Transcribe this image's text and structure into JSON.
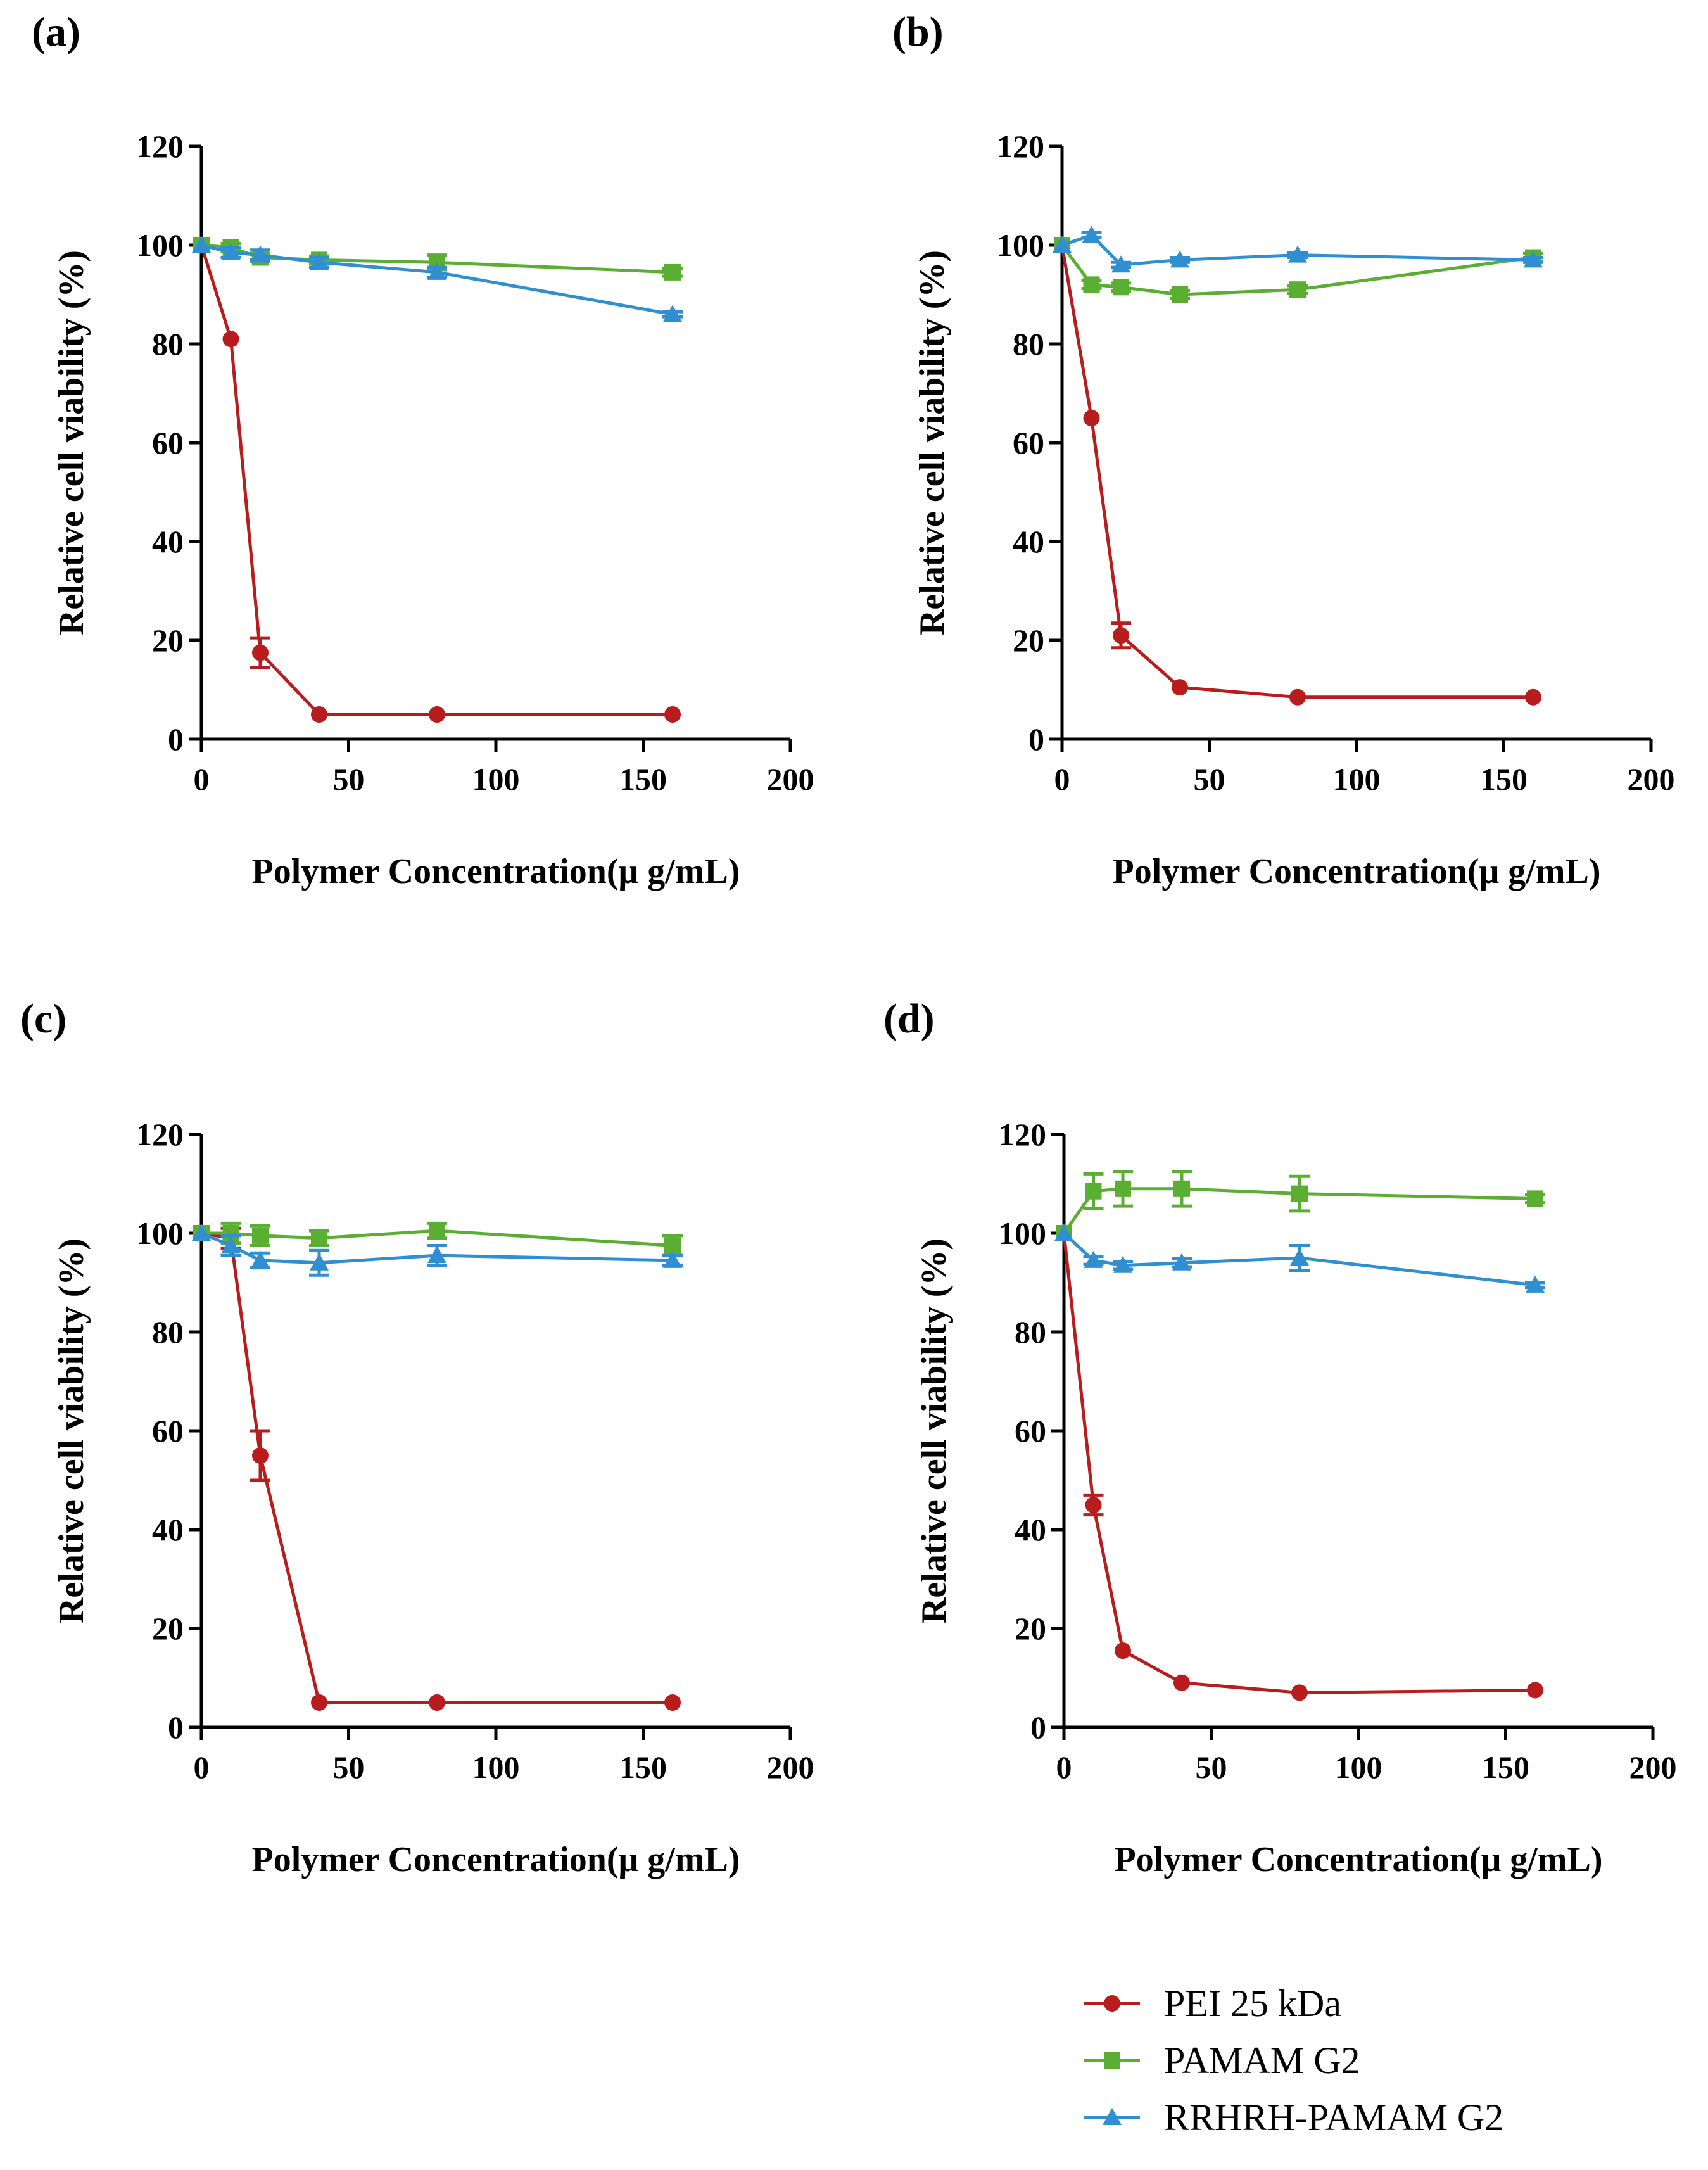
{
  "figure": {
    "series_styles": [
      {
        "name": "PEI 25 kDa",
        "color": "#B81C1C",
        "marker": "circle"
      },
      {
        "name": "PAMAM G2",
        "color": "#5AAF32",
        "marker": "square"
      },
      {
        "name": "RRHRH-PAMAM G2",
        "color": "#2F8FD0",
        "marker": "triangle"
      }
    ]
  },
  "legend": {
    "items": [
      "PEI 25 kDa",
      "PAMAM G2",
      "RRHRH-PAMAM G2"
    ]
  },
  "chart_data": [
    {
      "panel": "(a)",
      "type": "line",
      "xlabel": "Polymer Concentration(μ g/mL)",
      "ylabel": "Relative cell viability (%)",
      "xlim": [
        0,
        200
      ],
      "ylim": [
        0,
        120
      ],
      "xticks": [
        0,
        50,
        100,
        150,
        200
      ],
      "yticks": [
        0,
        20,
        40,
        60,
        80,
        100,
        120
      ],
      "x": [
        0,
        10,
        20,
        40,
        80,
        160
      ],
      "series": [
        {
          "name": "PEI 25 kDa",
          "values": [
            100,
            81,
            17.5,
            5,
            5,
            5
          ],
          "errors": [
            0,
            0,
            3,
            0,
            0,
            0
          ]
        },
        {
          "name": "PAMAM G2",
          "values": [
            100,
            99.5,
            97.5,
            97,
            96.5,
            94.5
          ],
          "errors": [
            0,
            0.8,
            0.8,
            0.8,
            1.5,
            0.8
          ]
        },
        {
          "name": "RRHRH-PAMAM G2",
          "values": [
            100,
            98.5,
            98,
            96.5,
            94.5,
            86
          ],
          "errors": [
            0,
            1,
            1,
            1,
            1,
            0.5
          ]
        }
      ]
    },
    {
      "panel": "(b)",
      "type": "line",
      "xlabel": "Polymer Concentration(μ g/mL)",
      "ylabel": "Relative cell viability (%)",
      "xlim": [
        0,
        200
      ],
      "ylim": [
        0,
        120
      ],
      "xticks": [
        0,
        50,
        100,
        150,
        200
      ],
      "yticks": [
        0,
        20,
        40,
        60,
        80,
        100,
        120
      ],
      "x": [
        0,
        10,
        20,
        40,
        80,
        160
      ],
      "series": [
        {
          "name": "PEI 25 kDa",
          "values": [
            100,
            65,
            21,
            10.5,
            8.5,
            8.5
          ],
          "errors": [
            0,
            0,
            2.5,
            0,
            0,
            0
          ]
        },
        {
          "name": "PAMAM G2",
          "values": [
            100,
            92,
            91.5,
            90,
            91,
            97.5
          ],
          "errors": [
            0,
            0.8,
            0.8,
            0.8,
            0.8,
            0.8
          ]
        },
        {
          "name": "RRHRH-PAMAM G2",
          "values": [
            100,
            102,
            96,
            97,
            98,
            97
          ],
          "errors": [
            0,
            0.5,
            0.5,
            0.5,
            0.5,
            0.5
          ]
        }
      ]
    },
    {
      "panel": "(c)",
      "type": "line",
      "xlabel": "Polymer Concentration(μ g/mL)",
      "ylabel": "Relative cell viability (%)",
      "xlim": [
        0,
        200
      ],
      "ylim": [
        0,
        120
      ],
      "xticks": [
        0,
        50,
        100,
        150,
        200
      ],
      "yticks": [
        0,
        20,
        40,
        60,
        80,
        100,
        120
      ],
      "x": [
        0,
        10,
        20,
        40,
        80,
        160
      ],
      "series": [
        {
          "name": "PEI 25 kDa",
          "values": [
            100,
            99,
            55,
            5,
            5,
            5
          ],
          "errors": [
            0,
            2,
            5,
            0,
            0,
            0
          ]
        },
        {
          "name": "PAMAM G2",
          "values": [
            100,
            100,
            99.5,
            99,
            100.5,
            97.5
          ],
          "errors": [
            0,
            2,
            2,
            1.5,
            1.5,
            2
          ]
        },
        {
          "name": "RRHRH-PAMAM G2",
          "values": [
            100,
            97.5,
            94.5,
            94,
            95.5,
            94.5
          ],
          "errors": [
            0,
            2,
            1.5,
            2.5,
            2,
            1
          ]
        }
      ]
    },
    {
      "panel": "(d)",
      "type": "line",
      "xlabel": "Polymer Concentration(μ g/mL)",
      "ylabel": "Relative cell viability (%)",
      "xlim": [
        0,
        200
      ],
      "ylim": [
        0,
        120
      ],
      "xticks": [
        0,
        50,
        100,
        150,
        200
      ],
      "yticks": [
        0,
        20,
        40,
        60,
        80,
        100,
        120
      ],
      "x": [
        0,
        10,
        20,
        40,
        80,
        160
      ],
      "series": [
        {
          "name": "PEI 25 kDa",
          "values": [
            100,
            45,
            15.5,
            9,
            7,
            7.5
          ],
          "errors": [
            0,
            2,
            0,
            0,
            0,
            0
          ]
        },
        {
          "name": "PAMAM G2",
          "values": [
            100,
            108.5,
            109,
            109,
            108,
            107
          ],
          "errors": [
            0,
            3.5,
            3.5,
            3.5,
            3.5,
            0.8
          ]
        },
        {
          "name": "RRHRH-PAMAM G2",
          "values": [
            100,
            94.5,
            93.5,
            94,
            95,
            89.5
          ],
          "errors": [
            0,
            0.8,
            0.8,
            0.8,
            2.5,
            0.5
          ]
        }
      ]
    }
  ]
}
